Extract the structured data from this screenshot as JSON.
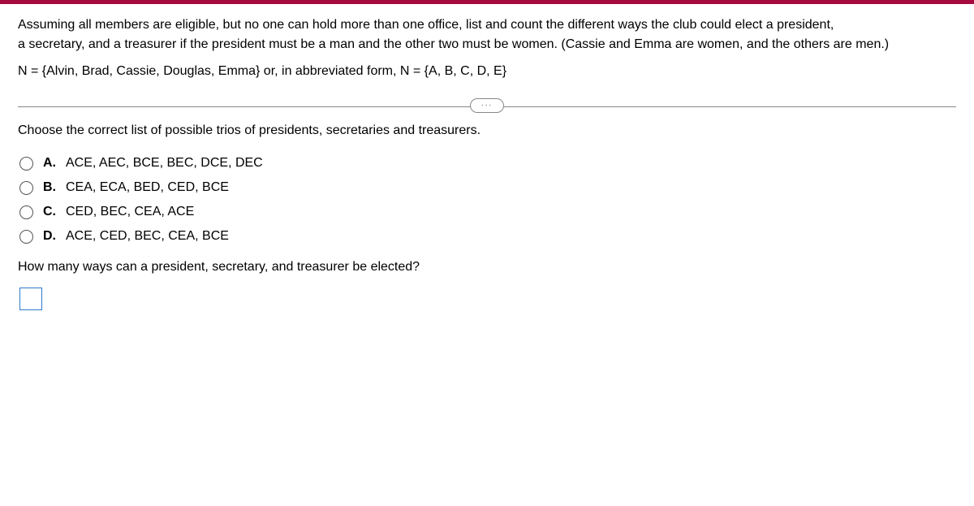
{
  "colors": {
    "topbar": "#a6093d",
    "divider": "#888888",
    "input_border": "#2e7bcf",
    "radio_border": "#555555"
  },
  "question": {
    "line1": "Assuming all members are eligible, but no one can hold more than one office, list and count the different ways the club could elect a president,",
    "line2": "a secretary, and a treasurer if the president must be a man and the other two must be women. (Cassie and Emma are women, and the others are men.)",
    "set_line": "N = {Alvin, Brad, Cassie, Douglas, Emma} or, in abbreviated form, N = {A, B, C, D, E}"
  },
  "instruction": "Choose the correct list of possible trios of presidents, secretaries and treasurers.",
  "options": [
    {
      "letter": "A.",
      "text": "ACE, AEC, BCE, BEC, DCE, DEC"
    },
    {
      "letter": "B.",
      "text": "CEA, ECA, BED, CED, BCE"
    },
    {
      "letter": "C.",
      "text": "CED, BEC, CEA, ACE"
    },
    {
      "letter": "D.",
      "text": "ACE, CED, BEC, CEA, BCE"
    }
  ],
  "followup": "How many ways can a president, secretary, and treasurer be elected?",
  "divider_dots": "..."
}
